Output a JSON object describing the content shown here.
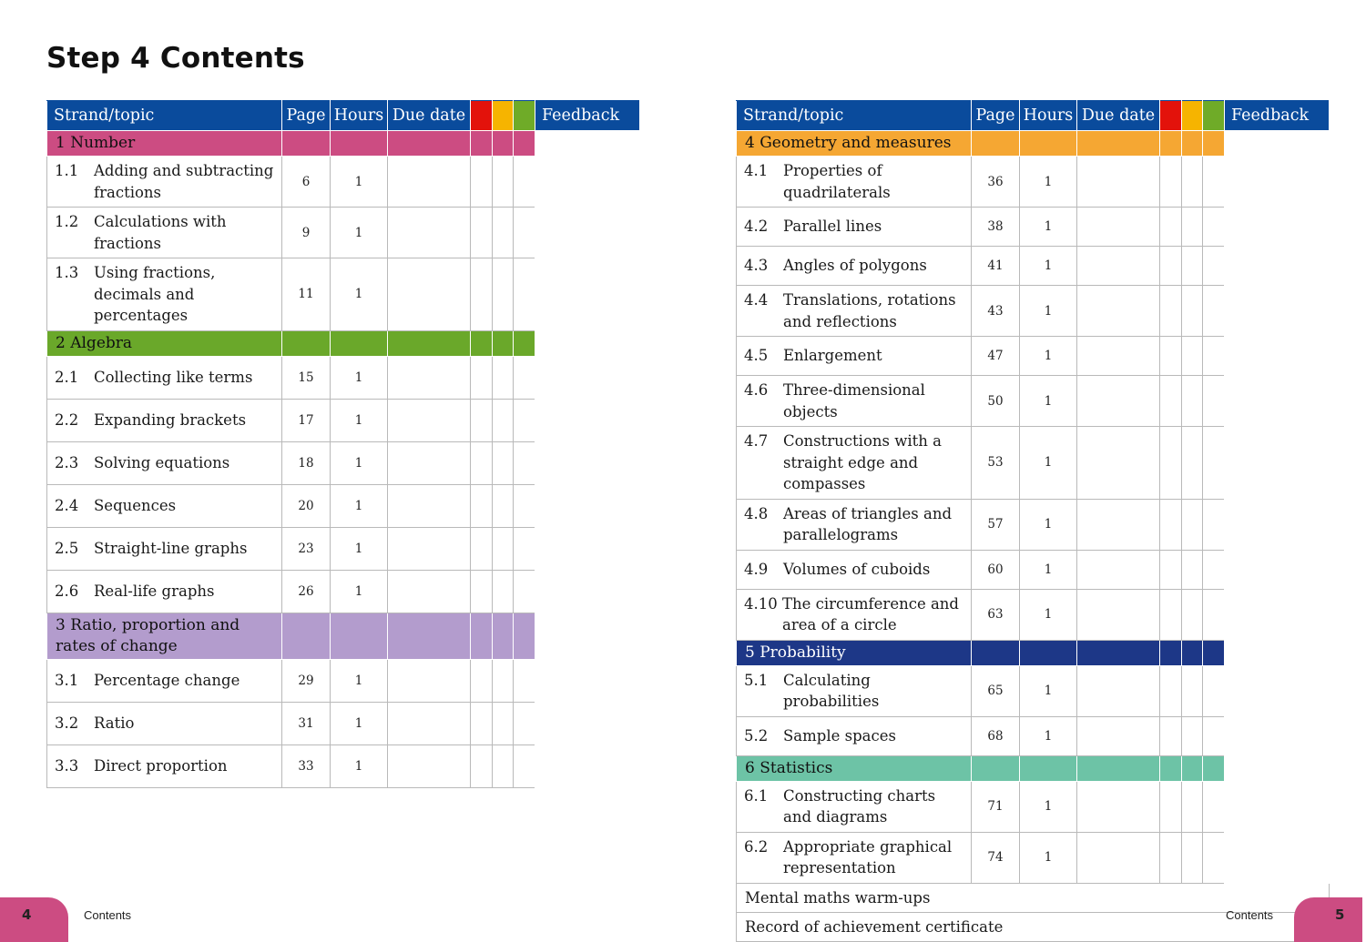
{
  "page_title": "Step 4 Contents",
  "headers": {
    "topic": "Strand/topic",
    "page": "Page",
    "hours": "Hours",
    "due": "Due date",
    "feedback": "Feedback"
  },
  "colors": {
    "header": "#0a4b9c",
    "rag_red": "#e3120b",
    "rag_amber": "#f6b400",
    "rag_green": "#6fab28"
  },
  "left_strands": [
    {
      "label": "1 Number",
      "color": "#cc4c82",
      "topics": [
        {
          "num": "1.1",
          "label": "Adding and subtracting fractions",
          "page": "6",
          "hours": "1",
          "h": 54
        },
        {
          "num": "1.2",
          "label": "Calculations with fractions",
          "page": "9",
          "hours": "1",
          "h": 47
        },
        {
          "num": "1.3",
          "label": "Using fractions, decimals and percentages",
          "page": "11",
          "hours": "1",
          "h": 56
        }
      ]
    },
    {
      "label": "2 Algebra",
      "color": "#6aa82a",
      "topics": [
        {
          "num": "2.1",
          "label": "Collecting like terms",
          "page": "15",
          "hours": "1",
          "h": 47
        },
        {
          "num": "2.2",
          "label": "Expanding brackets",
          "page": "17",
          "hours": "1",
          "h": 47
        },
        {
          "num": "2.3",
          "label": "Solving equations",
          "page": "18",
          "hours": "1",
          "h": 47
        },
        {
          "num": "2.4",
          "label": "Sequences",
          "page": "20",
          "hours": "1",
          "h": 47
        },
        {
          "num": "2.5",
          "label": "Straight-line graphs",
          "page": "23",
          "hours": "1",
          "h": 47
        },
        {
          "num": "2.6",
          "label": "Real-life graphs",
          "page": "26",
          "hours": "1",
          "h": 47
        }
      ]
    },
    {
      "label": "3 Ratio, proportion and rates of change",
      "color": "#b39ccd",
      "topics": [
        {
          "num": "3.1",
          "label": "Percentage change",
          "page": "29",
          "hours": "1",
          "h": 47
        },
        {
          "num": "3.2",
          "label": "Ratio",
          "page": "31",
          "hours": "1",
          "h": 47
        },
        {
          "num": "3.3",
          "label": "Direct proportion",
          "page": "33",
          "hours": "1",
          "h": 47
        }
      ]
    }
  ],
  "right_strands": [
    {
      "label": "4 Geometry and measures",
      "color": "#f5a733",
      "topics": [
        {
          "num": "4.1",
          "label": "Properties of quadrilaterals",
          "page": "36",
          "hours": "1",
          "h": 43
        },
        {
          "num": "4.2",
          "label": "Parallel lines",
          "page": "38",
          "hours": "1",
          "h": 43
        },
        {
          "num": "4.3",
          "label": "Angles of polygons",
          "page": "41",
          "hours": "1",
          "h": 43
        },
        {
          "num": "4.4",
          "label": "Translations, rotations and reflections",
          "page": "43",
          "hours": "1",
          "h": 52
        },
        {
          "num": "4.5",
          "label": "Enlargement",
          "page": "47",
          "hours": "1",
          "h": 43
        },
        {
          "num": "4.6",
          "label": "Three-dimensional objects",
          "page": "50",
          "hours": "1",
          "h": 52
        },
        {
          "num": "4.7",
          "label": "Constructions with a straight edge and compasses",
          "page": "53",
          "hours": "1",
          "h": 75
        },
        {
          "num": "4.8",
          "label": "Areas of triangles and parallelograms",
          "page": "57",
          "hours": "1",
          "h": 52
        },
        {
          "num": "4.9",
          "label": "Volumes of cuboids",
          "page": "60",
          "hours": "1",
          "h": 43
        },
        {
          "num": "4.10",
          "label": "The circumference and area of a circle",
          "page": "63",
          "hours": "1",
          "h": 52
        }
      ]
    },
    {
      "label": "5 Probability",
      "color": "#1d3787",
      "text_color": "#ffffff",
      "topics": [
        {
          "num": "5.1",
          "label": "Calculating probabilities",
          "page": "65",
          "hours": "1",
          "h": 43
        },
        {
          "num": "5.2",
          "label": "Sample spaces",
          "page": "68",
          "hours": "1",
          "h": 43
        }
      ]
    },
    {
      "label": "6 Statistics",
      "color": "#6dc3a6",
      "topics": [
        {
          "num": "6.1",
          "label": "Constructing charts and diagrams",
          "page": "71",
          "hours": "1",
          "h": 52
        },
        {
          "num": "6.2",
          "label": "Appropriate graphical representation",
          "page": "74",
          "hours": "1",
          "h": 52
        }
      ]
    }
  ],
  "extras": [
    "Mental maths warm-ups",
    "Record of achievement certificate"
  ],
  "footer": {
    "left_page": "4",
    "left_label": "Contents",
    "right_label": "Contents",
    "right_page": "5"
  }
}
